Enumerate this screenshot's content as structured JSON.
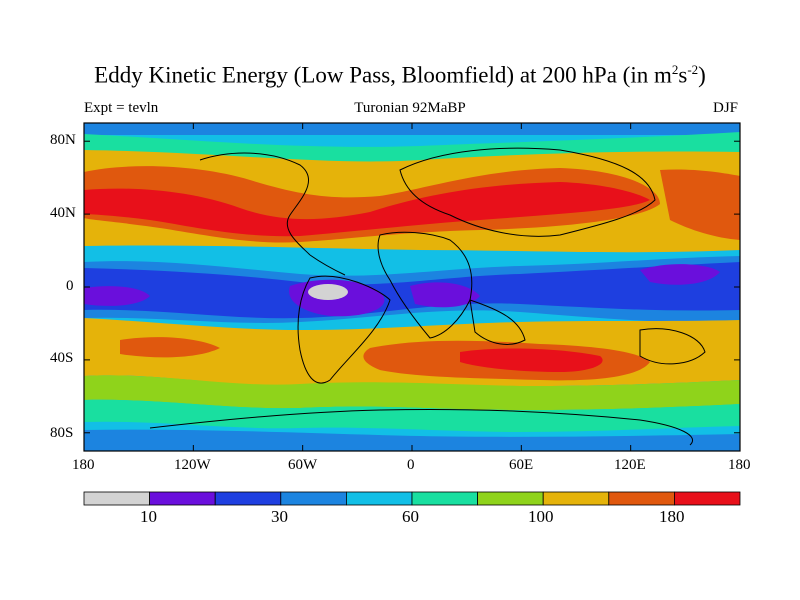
{
  "title": {
    "main": "Eddy Kinetic Energy (Low Pass, Bloomfield) at 200 hPa (in m",
    "sup1": "2",
    "mid": "s",
    "sup2": "-2",
    "end": ")"
  },
  "subtitle": {
    "left": "Expt = tevln",
    "center": "Turonian  92MaBP",
    "right": "DJF"
  },
  "lat_ticks": [
    "80N",
    "40N",
    "0",
    "40S",
    "80S"
  ],
  "lon_ticks": [
    "180",
    "120W",
    "60W",
    "0",
    "60E",
    "120E",
    "180"
  ],
  "colorbar": {
    "colors": [
      "#d3d3d3",
      "#6a0fdc",
      "#1e3fe0",
      "#1c84e0",
      "#12bfe6",
      "#19dfa0",
      "#8fd31b",
      "#e5b30a",
      "#e0580e",
      "#e8101a"
    ],
    "labels": [
      "10",
      "30",
      "60",
      "100",
      "180"
    ]
  }
}
